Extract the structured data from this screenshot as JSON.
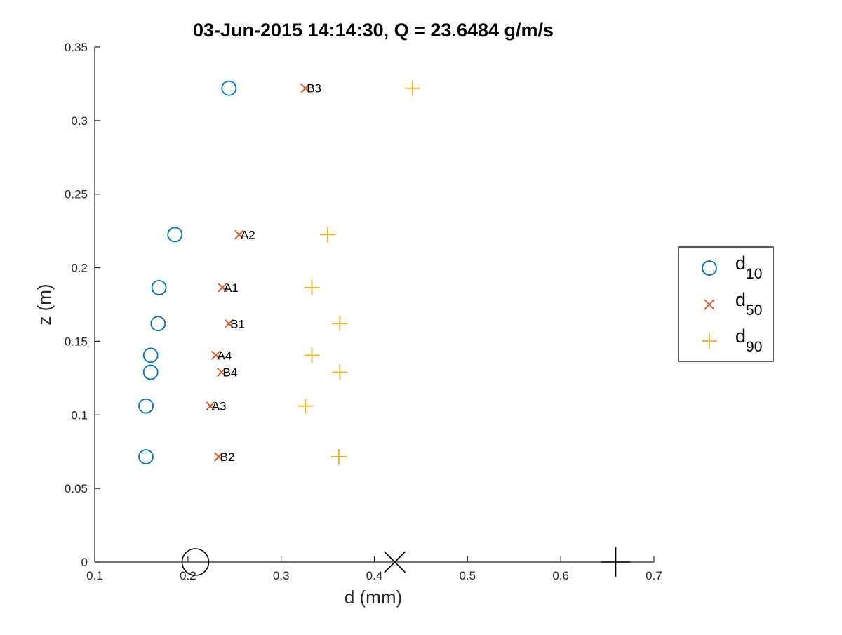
{
  "chart_data": {
    "type": "scatter",
    "title": "03-Jun-2015 14:14:30, Q = 23.6484 g/m/s",
    "xlabel": "d (mm)",
    "ylabel": "z (m)",
    "xlim": [
      0.1,
      0.7
    ],
    "ylim": [
      0,
      0.35
    ],
    "x_ticks": [
      0.1,
      0.2,
      0.3,
      0.4,
      0.5,
      0.6,
      0.7
    ],
    "x_tick_labels": [
      "0.1",
      "0.2",
      "0.3",
      "0.4",
      "0.5",
      "0.6",
      "0.7"
    ],
    "y_ticks": [
      0,
      0.05,
      0.1,
      0.15,
      0.2,
      0.25,
      0.3,
      0.35
    ],
    "y_tick_labels": [
      "0",
      "0.05",
      "0.1",
      "0.15",
      "0.2",
      "0.25",
      "0.3",
      "0.35"
    ],
    "grid": false,
    "legend_position": "right",
    "colors": {
      "d10": "#0072BD",
      "d50": "#D95319",
      "d90": "#EDB120",
      "axis": "#262626",
      "summary": "#000000"
    },
    "series": [
      {
        "name": "d10",
        "legend_main": "d",
        "legend_sub": "10",
        "marker": "circle",
        "color": "#0072BD",
        "points": [
          {
            "x": 0.244,
            "y": 0.322
          },
          {
            "x": 0.186,
            "y": 0.2225
          },
          {
            "x": 0.169,
            "y": 0.1865
          },
          {
            "x": 0.168,
            "y": 0.162
          },
          {
            "x": 0.16,
            "y": 0.1405
          },
          {
            "x": 0.16,
            "y": 0.129
          },
          {
            "x": 0.155,
            "y": 0.106
          },
          {
            "x": 0.155,
            "y": 0.0715
          }
        ]
      },
      {
        "name": "d50",
        "legend_main": "d",
        "legend_sub": "50",
        "marker": "x",
        "color": "#D95319",
        "points": [
          {
            "x": 0.326,
            "y": 0.322,
            "label": "B3"
          },
          {
            "x": 0.255,
            "y": 0.2225,
            "label": "A2"
          },
          {
            "x": 0.237,
            "y": 0.1865,
            "label": "A1"
          },
          {
            "x": 0.244,
            "y": 0.162,
            "label": "B1"
          },
          {
            "x": 0.23,
            "y": 0.1405,
            "label": "A4"
          },
          {
            "x": 0.236,
            "y": 0.129,
            "label": "B4"
          },
          {
            "x": 0.224,
            "y": 0.106,
            "label": "A3"
          },
          {
            "x": 0.233,
            "y": 0.0715,
            "label": "B2"
          }
        ]
      },
      {
        "name": "d90",
        "legend_main": "d",
        "legend_sub": "90",
        "marker": "plus",
        "color": "#EDB120",
        "points": [
          {
            "x": 0.441,
            "y": 0.322
          },
          {
            "x": 0.35,
            "y": 0.2225
          },
          {
            "x": 0.333,
            "y": 0.1865
          },
          {
            "x": 0.363,
            "y": 0.162
          },
          {
            "x": 0.333,
            "y": 0.1405
          },
          {
            "x": 0.363,
            "y": 0.129
          },
          {
            "x": 0.326,
            "y": 0.106
          },
          {
            "x": 0.362,
            "y": 0.0715
          }
        ]
      }
    ],
    "summary_markers": [
      {
        "name": "d10",
        "marker": "circle",
        "x": 0.208,
        "y": 0
      },
      {
        "name": "d50",
        "marker": "x",
        "x": 0.422,
        "y": 0
      },
      {
        "name": "d90",
        "marker": "plus",
        "x": 0.659,
        "y": 0
      }
    ]
  }
}
